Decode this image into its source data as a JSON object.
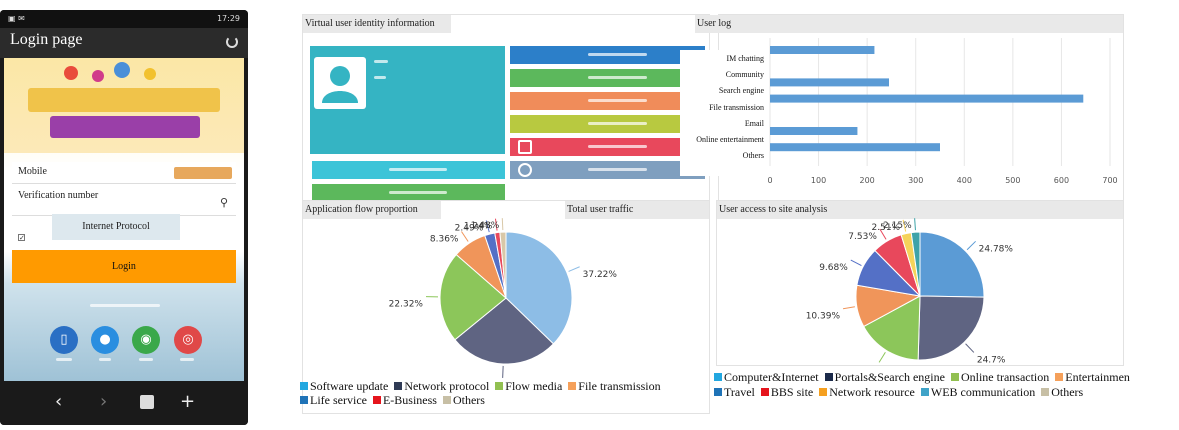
{
  "phone": {
    "status_time": "17:29",
    "title": "Login page",
    "mobile_label": "Mobile",
    "verification_label": "Verification number",
    "ip_tag": "Internet Protocol",
    "login_label": "Login"
  },
  "panels": {
    "identity_title": "Virtual user identity information",
    "userlog_title": "User log",
    "appflow_title": "Application flow proportion",
    "traffic_title": "Total user traffic",
    "access_title": "User access to site analysis"
  },
  "identity": {
    "colors": {
      "card": "#35b4c3",
      "qq": "#2c7fc9",
      "qqos": "#5cb85c",
      "taobao": "#f08c5a",
      "email": "#b8c940",
      "weibo": "#e8485c",
      "clock": "#7f9fbf",
      "phone": "#3cc4d8",
      "imsi": "#5cb85c"
    }
  },
  "chart_data": [
    {
      "type": "bar",
      "orientation": "horizontal",
      "categories": [
        "IM chatting",
        "Community",
        "Search engine",
        "File transmission",
        "Email",
        "Online entertainment",
        "Others"
      ],
      "values": [
        215,
        0,
        245,
        645,
        0,
        180,
        350
      ],
      "xlim": [
        0,
        700
      ],
      "xticks": [
        "0",
        "100",
        "200",
        "300",
        "400",
        "500",
        "600",
        "700"
      ],
      "color": "#5b9bd5",
      "grid": true
    },
    {
      "type": "pie",
      "series": [
        {
          "name": "Software update",
          "value": 37.22,
          "label_value": "37.22%",
          "color": "#8dbde6"
        },
        {
          "name": "Network protocol",
          "value": 26.86,
          "label_value": "26.86%",
          "color": "#5f6482"
        },
        {
          "name": "Flow media",
          "value": 22.32,
          "label_value": "22.32%",
          "color": "#8cc65a"
        },
        {
          "name": "File transmission",
          "value": 8.36,
          "label_value": "8.36%",
          "color": "#f0955a"
        },
        {
          "name": "Life service",
          "value": 2.49,
          "label_value": "2.49%",
          "color": "#5470c6"
        },
        {
          "name": "E-Business",
          "value": 1.24,
          "label_value": "1.24%",
          "color": "#e8485c"
        },
        {
          "name": "Others",
          "value": 1.48,
          "label_value": "1.48%",
          "color": "#d9c8a8"
        }
      ],
      "legend": [
        [
          "Software update",
          "Network protocol",
          "Flow media",
          "File transmission"
        ],
        [
          "Life service",
          "E-Business",
          "Others"
        ]
      ],
      "legend_colors": {
        "Software update": "#22a7e0",
        "Network protocol": "#2f3b55",
        "Flow media": "#92c051",
        "File transmission": "#f5a05a",
        "Life service": "#1f73b7",
        "E-Business": "#e5141c",
        "Others": "#c7bfa5"
      }
    },
    {
      "type": "pie",
      "series": [
        {
          "name": "Computer&Internet",
          "value": 24.78,
          "label_value": "24.78%",
          "color": "#5b9bd5"
        },
        {
          "name": "Portals&Search engine",
          "value": 24.7,
          "label_value": "24.7%",
          "color": "#5f6482"
        },
        {
          "name": "Online transaction",
          "value": 16.3,
          "label_value": "",
          "color": "#8cc65a"
        },
        {
          "name": "Entertainment",
          "value": 10.39,
          "label_value": "10.39%",
          "color": "#f0955a"
        },
        {
          "name": "Travel",
          "value": 9.68,
          "label_value": "9.68%",
          "color": "#5470c6"
        },
        {
          "name": "BBS site",
          "value": 7.53,
          "label_value": "7.53%",
          "color": "#e8485c"
        },
        {
          "name": "Network resource",
          "value": 2.51,
          "label_value": "2.51%",
          "color": "#f5d35a"
        },
        {
          "name": "WEB communication",
          "value": 2.15,
          "label_value": "2.15%",
          "color": "#3fa3a8"
        }
      ],
      "legend": [
        [
          "Computer&Internet",
          "Portals&Search engine",
          "Online transaction",
          "Entertainmen"
        ],
        [
          "Travel",
          "BBS site",
          "Network resource",
          "WEB communication",
          "Others"
        ]
      ],
      "legend_colors": {
        "Computer&Internet": "#22a7e0",
        "Portals&Search engine": "#1b2a4a",
        "Online transaction": "#92c051",
        "Entertainmen": "#f5a05a",
        "Travel": "#1f73b7",
        "BBS site": "#e5141c",
        "Network resource": "#f5a020",
        "WEB communication": "#3fa3c8",
        "Others": "#c7bfa5"
      }
    }
  ]
}
